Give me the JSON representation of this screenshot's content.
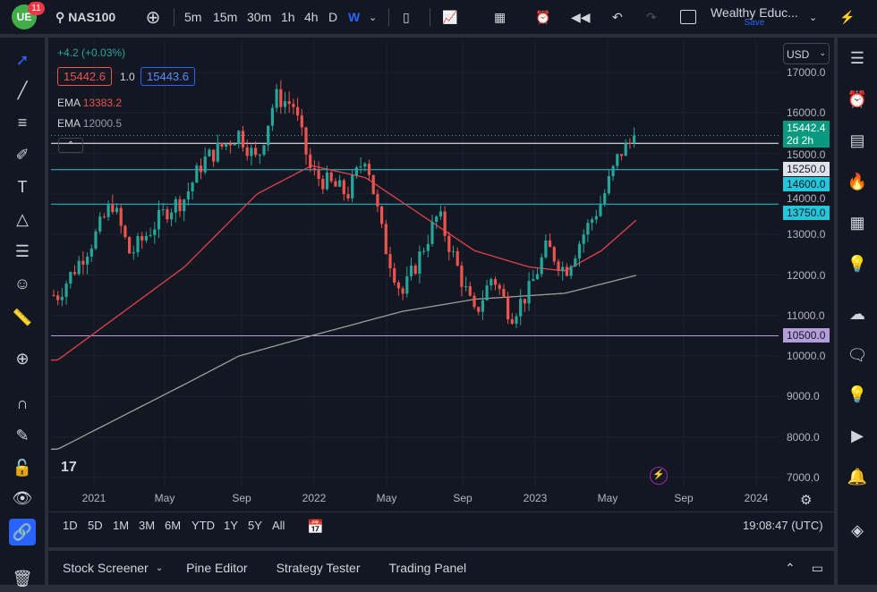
{
  "topbar": {
    "badge": "11",
    "symbol": "NAS100",
    "intervals": [
      "5m",
      "15m",
      "30m",
      "1h",
      "4h",
      "D",
      "W"
    ],
    "active_interval": "W",
    "layout_name": "Wealthy Educ...",
    "save_label": "Save"
  },
  "legend": {
    "change": "+4.2 (+0.03%)",
    "sell": "15442.6",
    "spread": "1.0",
    "buy": "15443.6",
    "ema1_label": "EMA",
    "ema1_value": "13383.2",
    "ema2_label": "EMA",
    "ema2_value": "12000.5"
  },
  "price_axis": {
    "currency": "USD",
    "ticks": [
      "17000.0",
      "16000.0",
      "15000.0",
      "14000.0",
      "13000.0",
      "12000.0",
      "11000.0",
      "10000.0",
      "9000.0",
      "8000.0",
      "7000.0"
    ],
    "last_price": "15442.4",
    "countdown": "2d 2h",
    "levels": [
      {
        "label": "15250.0",
        "value": 15250,
        "color": "#ffffff"
      },
      {
        "label": "14600.0",
        "value": 14600,
        "color": "#26c6da"
      },
      {
        "label": "13750.0",
        "value": 13750,
        "color": "#26c6da"
      },
      {
        "label": "10500.0",
        "value": 10500,
        "color": "#b39ddb"
      }
    ]
  },
  "time_axis": [
    "2021",
    "May",
    "Sep",
    "2022",
    "May",
    "Sep",
    "2023",
    "May",
    "Sep",
    "2024"
  ],
  "range_buttons": [
    "1D",
    "5D",
    "1M",
    "3M",
    "6M",
    "YTD",
    "1Y",
    "5Y",
    "All"
  ],
  "clock": "19:08:47 (UTC)",
  "bottom_tabs": [
    "Stock Screener",
    "Pine Editor",
    "Strategy Tester",
    "Trading Panel"
  ],
  "colors": {
    "up": "#26a69a",
    "down": "#ef5350",
    "ema1": "#e0424f",
    "ema2": "#9e9e9e",
    "accent": "#2962ff"
  },
  "chart_data": {
    "type": "candlestick",
    "interval": "weekly",
    "ylim": [
      7000,
      17000
    ],
    "close_path": [
      [
        "2020-11",
        11500
      ],
      [
        "2021-01",
        12900
      ],
      [
        "2021-02",
        13800
      ],
      [
        "2021-03",
        12500
      ],
      [
        "2021-05",
        13600
      ],
      [
        "2021-06",
        13900
      ],
      [
        "2021-07",
        14800
      ],
      [
        "2021-09",
        15500
      ],
      [
        "2021-10",
        14800
      ],
      [
        "2021-11",
        16400
      ],
      [
        "2021-12",
        16200
      ],
      [
        "2022-01",
        14500
      ],
      [
        "2022-03",
        14000
      ],
      [
        "2022-04",
        15000
      ],
      [
        "2022-05",
        12800
      ],
      [
        "2022-06",
        11500
      ],
      [
        "2022-08",
        13500
      ],
      [
        "2022-10",
        11000
      ],
      [
        "2022-11",
        12000
      ],
      [
        "2022-12",
        11000
      ],
      [
        "2023-01",
        11600
      ],
      [
        "2023-02",
        12700
      ],
      [
        "2023-03",
        12100
      ],
      [
        "2023-04",
        13000
      ],
      [
        "2023-05",
        13800
      ],
      [
        "2023-06",
        15000
      ],
      [
        "2023-07",
        15442.4
      ]
    ],
    "ema1_path": [
      [
        "2020-11",
        9900
      ],
      [
        "2021-06",
        12200
      ],
      [
        "2021-10",
        14000
      ],
      [
        "2022-01",
        14700
      ],
      [
        "2022-04",
        14400
      ],
      [
        "2022-07",
        13500
      ],
      [
        "2022-10",
        12600
      ],
      [
        "2023-01",
        12200
      ],
      [
        "2023-03",
        12100
      ],
      [
        "2023-05",
        12600
      ],
      [
        "2023-07",
        13383.2
      ]
    ],
    "ema2_path": [
      [
        "2020-11",
        7700
      ],
      [
        "2021-06",
        9300
      ],
      [
        "2021-09",
        10000
      ],
      [
        "2022-01",
        10500
      ],
      [
        "2022-06",
        11100
      ],
      [
        "2022-10",
        11400
      ],
      [
        "2023-03",
        11550
      ],
      [
        "2023-07",
        12000.5
      ]
    ]
  }
}
